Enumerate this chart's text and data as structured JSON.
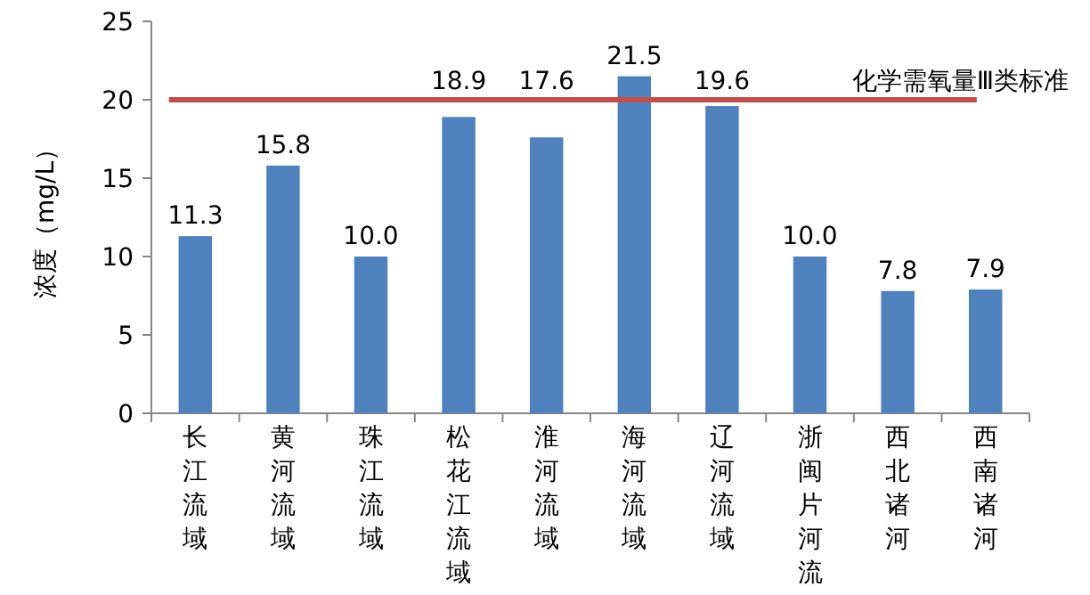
{
  "chart_data": {
    "type": "bar",
    "ylabel": "浓度（mg/L）",
    "categories": [
      "长江流域",
      "黄河流域",
      "珠江流域",
      "松花江流域",
      "淮河流域",
      "海河流域",
      "辽河流域",
      "浙闽片河流",
      "西北诸河",
      "西南诸河"
    ],
    "values": [
      11.3,
      15.8,
      10.0,
      18.9,
      17.6,
      21.5,
      19.6,
      10.0,
      7.8,
      7.9
    ],
    "value_labels": [
      "11.3",
      "15.8",
      "10.0",
      "18.9",
      "17.6",
      "21.5",
      "19.6",
      "10.0",
      "7.8",
      "7.9"
    ],
    "color": "#4f81bd",
    "ylim": [
      0,
      25
    ],
    "yticks": [
      0,
      5,
      10,
      15,
      20,
      25
    ],
    "ref_lines": [
      {
        "axis": "y",
        "value": 20,
        "label": "化学需氧量Ⅲ类标准",
        "color": "#c0504d"
      }
    ]
  }
}
